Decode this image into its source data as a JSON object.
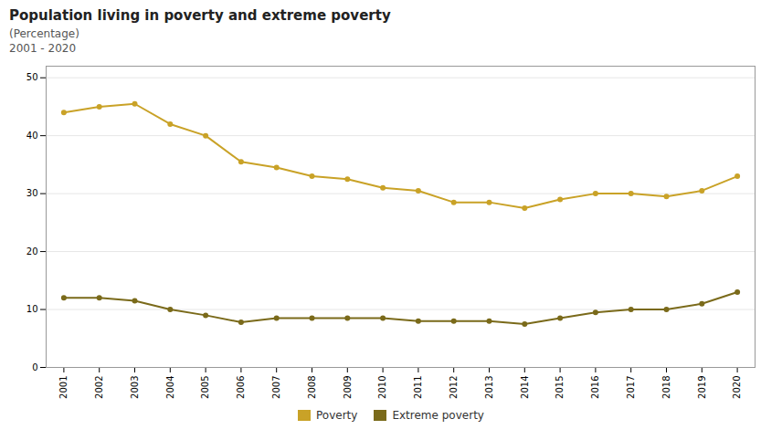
{
  "chart_data": {
    "type": "line",
    "title": "Population living in poverty and extreme poverty",
    "subtitle": [
      "(Percentage)",
      "2001 - 2020"
    ],
    "x": [
      2001,
      2002,
      2003,
      2004,
      2005,
      2006,
      2007,
      2008,
      2009,
      2010,
      2011,
      2012,
      2013,
      2014,
      2015,
      2016,
      2017,
      2018,
      2019,
      2020
    ],
    "series": [
      {
        "name": "Poverty",
        "color": "#c9a227",
        "marker": "circle",
        "values": [
          44.0,
          45.0,
          45.5,
          42.0,
          40.0,
          35.5,
          34.5,
          33.0,
          32.5,
          31.0,
          30.5,
          28.5,
          28.5,
          27.5,
          29.0,
          30.0,
          30.0,
          29.5,
          30.5,
          33.0
        ]
      },
      {
        "name": "Extreme poverty",
        "color": "#7a6a1a",
        "marker": "circle",
        "values": [
          12.0,
          12.0,
          11.5,
          10.0,
          9.0,
          7.8,
          8.5,
          8.5,
          8.5,
          8.5,
          8.0,
          8.0,
          8.0,
          7.5,
          8.5,
          9.5,
          10.0,
          10.0,
          11.0,
          13.0
        ]
      }
    ],
    "xlim": [
      2000.5,
      2020.5
    ],
    "xticks": [
      2001,
      2002,
      2003,
      2004,
      2005,
      2006,
      2007,
      2008,
      2009,
      2010,
      2011,
      2012,
      2013,
      2014,
      2015,
      2016,
      2017,
      2018,
      2019,
      2020
    ],
    "ylim": [
      0,
      52
    ],
    "yticks": [
      0,
      10,
      20,
      30,
      40,
      50
    ],
    "grid": "y",
    "legend": "bottom"
  }
}
